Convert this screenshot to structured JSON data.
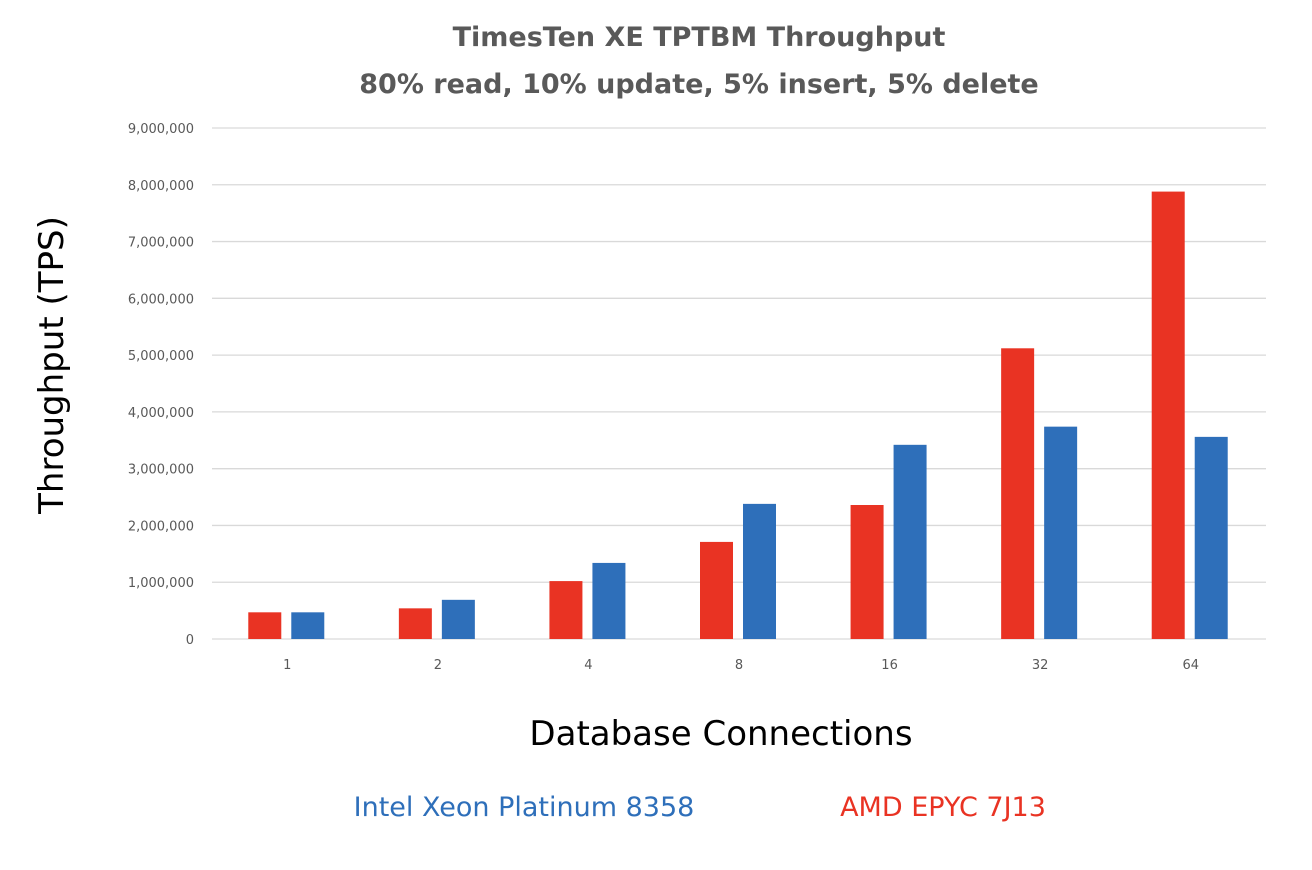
{
  "chart_data": {
    "type": "bar",
    "title": "TimesTen XE TPTBM Throughput",
    "subtitle": "80% read, 10% update, 5% insert, 5% delete",
    "xlabel": "Database Connections",
    "ylabel": "Throughput (TPS)",
    "categories": [
      "1",
      "2",
      "4",
      "8",
      "16",
      "32",
      "64"
    ],
    "ylim": [
      0,
      9000000
    ],
    "yticks": [
      0,
      1000000,
      2000000,
      3000000,
      4000000,
      5000000,
      6000000,
      7000000,
      8000000,
      9000000
    ],
    "ytick_labels": [
      "0",
      "1,000,000",
      "2,000,000",
      "3,000,000",
      "4,000,000",
      "5,000,000",
      "6,000,000",
      "7,000,000",
      "8,000,000",
      "9,000,000"
    ],
    "grid": true,
    "legend_position": "bottom",
    "series": [
      {
        "name": "AMD EPYC 7J13",
        "color": "#e93323",
        "values": [
          470000,
          540000,
          1020000,
          1710000,
          2360000,
          5120000,
          7880000
        ]
      },
      {
        "name": "Intel Xeon Platinum 8358",
        "color": "#2e6fba",
        "values": [
          470000,
          690000,
          1340000,
          2380000,
          3420000,
          3740000,
          3560000
        ]
      }
    ],
    "legend_order": [
      1,
      0
    ]
  }
}
